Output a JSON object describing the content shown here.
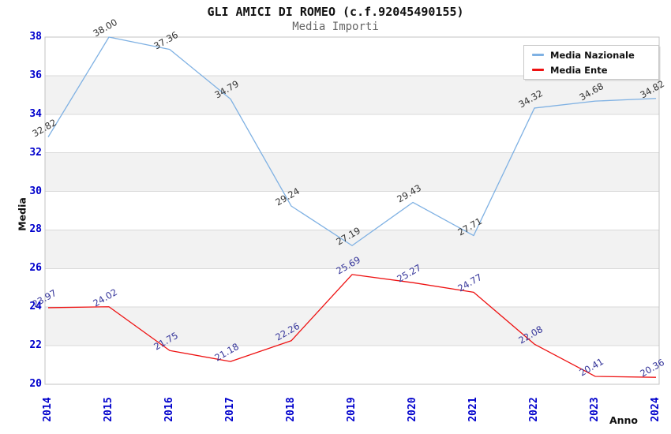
{
  "header": {
    "title": "GLI AMICI DI ROMEO (c.f.92045490155)",
    "subtitle": "Media Importi"
  },
  "chart_data": {
    "type": "line",
    "x": [
      "2014",
      "2015",
      "2016",
      "2017",
      "2018",
      "2019",
      "2020",
      "2021",
      "2022",
      "2023",
      "2024"
    ],
    "series": [
      {
        "name": "Media Nazionale",
        "color": "#7fb1e3",
        "label_color": "#333333",
        "values": [
          32.82,
          38.0,
          37.36,
          34.79,
          29.24,
          27.19,
          29.43,
          27.71,
          34.32,
          34.68,
          34.82
        ],
        "labels": [
          "32.82",
          "38.00",
          "37.36",
          "34.79",
          "29.24",
          "27.19",
          "29.43",
          "27.71",
          "34.32",
          "34.68",
          "34.82"
        ]
      },
      {
        "name": "Media Ente",
        "color": "#ee1111",
        "label_color": "#333399",
        "values": [
          23.97,
          24.02,
          21.75,
          21.18,
          22.26,
          25.69,
          25.27,
          24.77,
          22.08,
          20.41,
          20.36
        ],
        "labels": [
          "23.97",
          "24.02",
          "21.75",
          "21.18",
          "22.26",
          "25.69",
          "25.27",
          "24.77",
          "22.08",
          "20.41",
          "20.36"
        ]
      }
    ],
    "xlabel": "Anno",
    "ylabel": "Media",
    "ylim": [
      20,
      38
    ],
    "y_ticks": [
      "20",
      "22",
      "24",
      "26",
      "28",
      "30",
      "32",
      "34",
      "36",
      "38"
    ],
    "grid": "horizontal",
    "legend_position": "top-right",
    "colors": {
      "tick_label": "#0000cc",
      "band_fill": "#f2f2f2",
      "gridline": "#d9d9d9",
      "plot_border": "#c3c3c3"
    }
  }
}
